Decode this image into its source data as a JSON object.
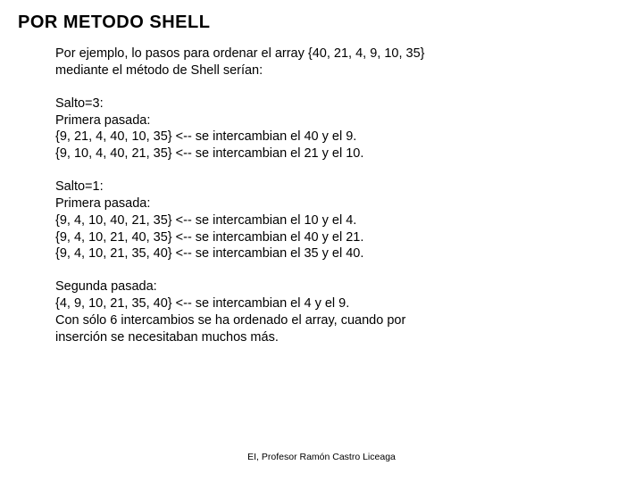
{
  "title": "POR METODO SHELL",
  "intro": {
    "line1": "Por ejemplo, lo pasos para ordenar el array {40, 21, 4, 9, 10, 35}",
    "line2": "mediante el método de Shell serían:"
  },
  "block1": {
    "line1": "Salto=3:",
    "line2": "Primera pasada:",
    "line3": "{9, 21, 4, 40, 10, 35} <-- se intercambian el 40 y el 9.",
    "line4": "{9, 10, 4, 40, 21, 35} <-- se intercambian el 21 y el 10."
  },
  "block2": {
    "line1": "Salto=1:",
    "line2": "Primera pasada:",
    "line3": "{9, 4, 10, 40, 21, 35} <-- se intercambian el 10 y el 4.",
    "line4": "{9, 4, 10, 21, 40, 35} <-- se intercambian el 40 y el 21.",
    "line5": "{9, 4, 10, 21, 35, 40} <-- se intercambian el 35 y el 40."
  },
  "block3": {
    "line1": "Segunda pasada:",
    "line2": "{4, 9, 10, 21, 35, 40} <-- se intercambian el 4 y el 9.",
    "line3": "Con sólo 6 intercambios se ha ordenado el array, cuando por",
    "line4": "inserción se necesitaban muchos más."
  },
  "footer": "EI, Profesor Ramón Castro Liceaga"
}
